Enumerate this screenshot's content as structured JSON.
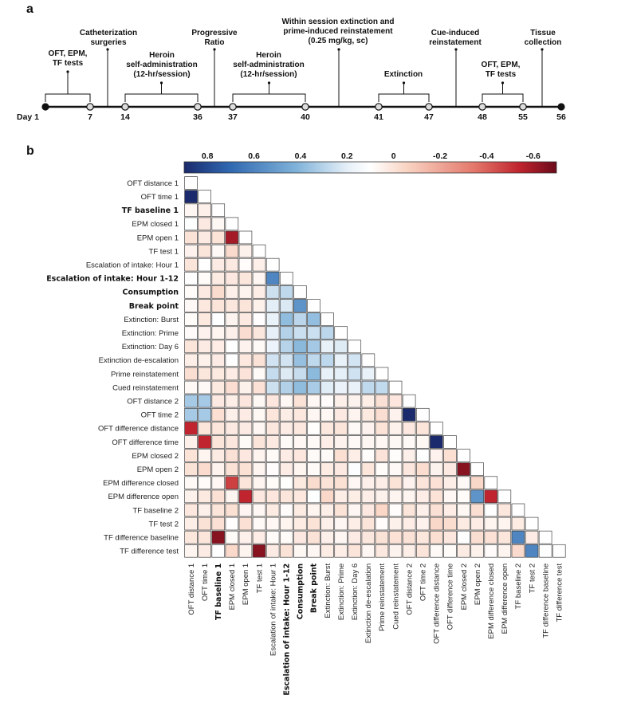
{
  "panel_a_label": "a",
  "panel_b_label": "b",
  "timeline": {
    "days": [
      "Day 1",
      "7",
      "14",
      "36",
      "37",
      "40",
      "41",
      "47",
      "48",
      "55",
      "56"
    ],
    "events": [
      {
        "lines": [
          "OFT, EPM,",
          "TF tests"
        ]
      },
      {
        "lines": [
          "Catheterization",
          "surgeries"
        ]
      },
      {
        "lines": [
          "Heroin",
          "self-administration",
          "(12-hr/session)"
        ]
      },
      {
        "lines": [
          "Progressive",
          "Ratio"
        ]
      },
      {
        "lines": [
          "Heroin",
          "self-administration",
          "(12-hr/session)"
        ]
      },
      {
        "lines": [
          "Within session extinction and",
          "prime-induced reinstatement",
          "(0.25 mg/kg, sc)"
        ]
      },
      {
        "lines": [
          "Extinction"
        ]
      },
      {
        "lines": [
          "Cue-induced",
          "reinstatement"
        ]
      },
      {
        "lines": [
          "OFT, EPM,",
          "TF tests"
        ]
      },
      {
        "lines": [
          "Tissue",
          "collection"
        ]
      }
    ]
  },
  "chart_data": {
    "type": "heatmap",
    "subtype": "lower-triangular correlation matrix",
    "colorbar": {
      "ticks": [
        "0.8",
        "0.6",
        "0.4",
        "0.2",
        "0",
        "-0.2",
        "-0.4",
        "-0.6"
      ],
      "min": -0.7,
      "max": 0.9,
      "colormap": "blue (positive) to white to red (negative)"
    },
    "labels": [
      "OFT distance 1",
      "OFT time 1",
      "TF baseline 1",
      "EPM closed 1",
      "EPM open 1",
      "TF test 1",
      "Escalation of intake: Hour 1",
      "Escalation of intake: Hour 1-12",
      "Consumption",
      "Break point",
      "Extinction: Burst",
      "Extinction: Prime",
      "Extinction: Day 6",
      "Extinction de-escalation",
      "Prime reinstatement",
      "Cued reinstatement",
      "OFT distance 2",
      "OFT time 2",
      "OFT difference distance",
      "OFT difference time",
      "EPM closed 2",
      "EPM open 2",
      "EPM difference closed",
      "EPM difference open",
      "TF baseline 2",
      "TF test 2",
      "TF difference baseline",
      "TF difference test"
    ],
    "bold_labels": [
      "TF baseline 1",
      "Escalation of intake: Hour 1-12",
      "Consumption",
      "Break point"
    ],
    "notable_values": [
      {
        "row": "OFT time 1",
        "col": "OFT distance 1",
        "r": 0.9
      },
      {
        "row": "EPM open 1",
        "col": "EPM closed 1",
        "r": -0.65
      },
      {
        "row": "Escalation of intake: Hour 1-12",
        "col": "Escalation of intake: Hour 1",
        "r": 0.6
      },
      {
        "row": "Break point",
        "col": "Consumption",
        "r": 0.55
      },
      {
        "row": "OFT time 2",
        "col": "OFT distance 2",
        "r": 0.9
      },
      {
        "row": "OFT difference time",
        "col": "OFT difference distance",
        "r": 0.9
      },
      {
        "row": "OFT difference distance",
        "col": "OFT distance 1",
        "r": -0.6
      },
      {
        "row": "OFT difference time",
        "col": "OFT time 1",
        "r": -0.6
      },
      {
        "row": "EPM open 2",
        "col": "EPM closed 2",
        "r": -0.7
      },
      {
        "row": "EPM difference closed",
        "col": "EPM closed 1",
        "r": -0.55
      },
      {
        "row": "EPM difference open",
        "col": "EPM open 1",
        "r": -0.6
      },
      {
        "row": "EPM difference open",
        "col": "EPM difference closed",
        "r": -0.6
      },
      {
        "row": "EPM difference open",
        "col": "EPM open 2",
        "r": 0.55
      },
      {
        "row": "TF difference baseline",
        "col": "TF baseline 1",
        "r": -0.7
      },
      {
        "row": "TF difference baseline",
        "col": "TF baseline 2",
        "r": 0.6
      },
      {
        "row": "TF difference test",
        "col": "TF test 1",
        "r": -0.7
      },
      {
        "row": "TF difference test",
        "col": "TF test 2",
        "r": 0.6
      }
    ]
  }
}
